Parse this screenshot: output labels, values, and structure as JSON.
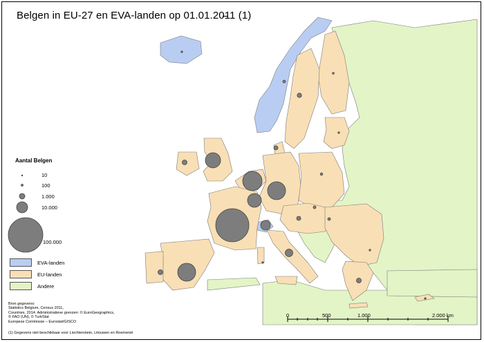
{
  "title": "Belgen in EU-27 en EVA-landen  op 01.01.2011 (1)",
  "colors": {
    "sea": "#ffffff",
    "eva": "#b9cdf3",
    "eu": "#f9dfb5",
    "other": "#e3f4c6",
    "border": "#7a7a7a",
    "bubble": "#7d7d7d"
  },
  "legend": {
    "title": "Aantal Belgen",
    "sizes": [
      {
        "label": "10",
        "value": 10
      },
      {
        "label": "100",
        "value": 100
      },
      {
        "label": "1.000",
        "value": 1000
      },
      {
        "label": "10.000",
        "value": 10000
      },
      {
        "label": "100.000",
        "value": 100000
      }
    ],
    "categories": [
      {
        "label": "EVA-landen",
        "color_key": "eva"
      },
      {
        "label": "EU-landen",
        "color_key": "eu"
      },
      {
        "label": "Andere",
        "color_key": "other"
      }
    ]
  },
  "source": {
    "lines": [
      "Bron gegevens:",
      "Statistics Belgium, Census 2011,",
      "Countries, 2014. Administratieve grenzen: © EuroGeographics,",
      "© FAO (UN), © TurkStat",
      "Europese Commissie – Eurostat/GISCO"
    ]
  },
  "footnote": "(1) Gegevens niet beschikbaar voor Liechtenstein, Litouwen en Roemenië",
  "scale": {
    "ticks": [
      "0",
      "500",
      "1.000",
      "2.000 km"
    ],
    "km": [
      0,
      500,
      1000,
      2000
    ]
  }
}
